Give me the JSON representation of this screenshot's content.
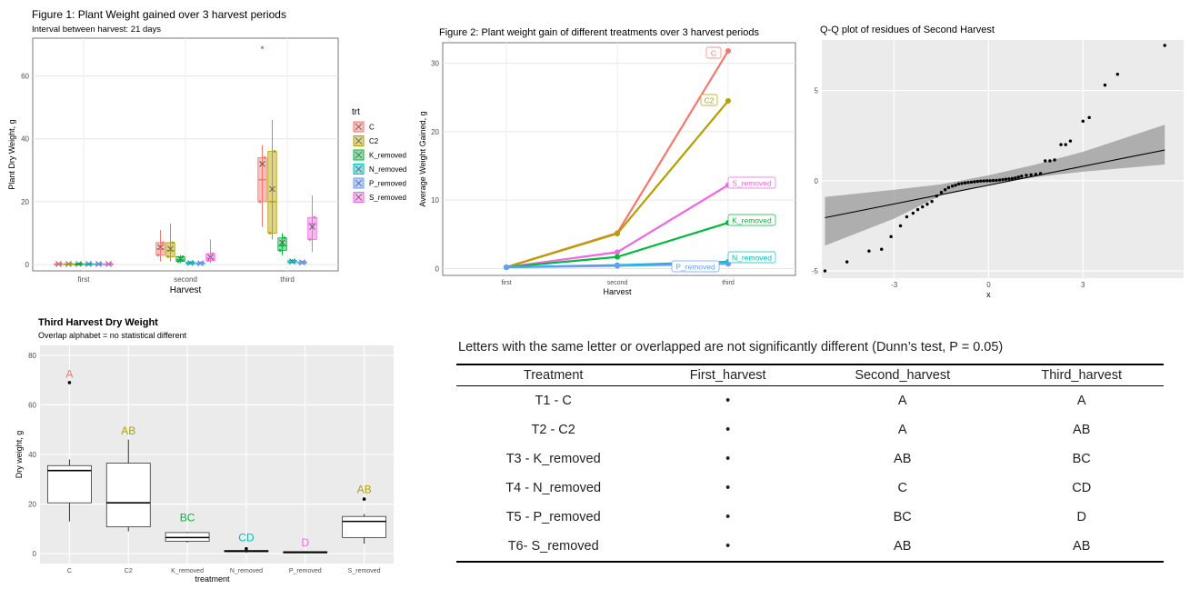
{
  "fig1": {
    "title": "Figure 1: Plant Weight gained over 3 harvest periods",
    "subtitle": "Interval between harvest: 21 days",
    "legend_title": "trt",
    "chart_data": {
      "type": "box",
      "xlabel": "Harvest",
      "ylabel": "Plant Dry Weight, g",
      "categories": [
        "first",
        "second",
        "third"
      ],
      "ylim": [
        -2,
        72
      ],
      "yticks": [
        0,
        20,
        40,
        60
      ],
      "grid": true,
      "legend": "right",
      "series": [
        {
          "name": "C",
          "color": "#F8766D",
          "boxes": [
            [
              0,
              0.1,
              0.2,
              0.3,
              0.5
            ],
            [
              1,
              3,
              5,
              7,
              11
            ],
            [
              12,
              20,
              27,
              34,
              38
            ]
          ],
          "means": [
            0.2,
            5.5,
            32
          ],
          "outliers": [
            [],
            [],
            [
              69
            ]
          ]
        },
        {
          "name": "C2",
          "color": "#B79F00",
          "boxes": [
            [
              0,
              0.1,
              0.2,
              0.3,
              0.5
            ],
            [
              1,
              2.5,
              4.5,
              7,
              13
            ],
            [
              8,
              10,
              20,
              36,
              46
            ]
          ],
          "means": [
            0.2,
            5,
            24
          ],
          "outliers": [
            [],
            [],
            []
          ]
        },
        {
          "name": "K_removed",
          "color": "#00BA38",
          "boxes": [
            [
              0,
              0.1,
              0.2,
              0.3,
              0.5
            ],
            [
              0.5,
              1,
              1.5,
              2.5,
              3
            ],
            [
              3,
              4.5,
              6,
              8.5,
              10
            ]
          ],
          "means": [
            0.2,
            1.8,
            7
          ],
          "outliers": [
            [],
            [],
            []
          ]
        },
        {
          "name": "N_removed",
          "color": "#00BFC4",
          "boxes": [
            [
              0,
              0.1,
              0.2,
              0.3,
              0.5
            ],
            [
              0,
              0.2,
              0.5,
              0.8,
              1.2
            ],
            [
              0.3,
              0.6,
              0.9,
              1.3,
              1.8
            ]
          ],
          "means": [
            0.2,
            0.5,
            1
          ],
          "outliers": [
            [],
            [],
            []
          ]
        },
        {
          "name": "P_removed",
          "color": "#619CFF",
          "boxes": [
            [
              0,
              0.1,
              0.2,
              0.3,
              0.5
            ],
            [
              0,
              0.2,
              0.4,
              0.6,
              1
            ],
            [
              0.2,
              0.4,
              0.6,
              0.9,
              1.2
            ]
          ],
          "means": [
            0.2,
            0.4,
            0.7
          ],
          "outliers": [
            [],
            [],
            []
          ]
        },
        {
          "name": "S_removed",
          "color": "#F564E3",
          "boxes": [
            [
              0,
              0.1,
              0.2,
              0.3,
              0.5
            ],
            [
              0.5,
              1.2,
              2,
              3.5,
              8
            ],
            [
              4,
              8,
              13,
              15,
              22
            ]
          ],
          "means": [
            0.2,
            2.3,
            12
          ],
          "outliers": [
            [],
            [],
            []
          ]
        }
      ]
    }
  },
  "fig2": {
    "title": "Figure 2: Plant weight gain of different treatments over 3 harvest periods",
    "chart_data": {
      "type": "line",
      "xlabel": "Harvest",
      "ylabel": "Average Weight Gained, g",
      "categories": [
        "first",
        "second",
        "third"
      ],
      "ylim": [
        -1,
        33
      ],
      "yticks": [
        0,
        10,
        20,
        30
      ],
      "grid": true,
      "series": [
        {
          "name": "C",
          "color": "#F8766D",
          "values": [
            0.2,
            5.2,
            31.8
          ]
        },
        {
          "name": "C2",
          "color": "#B79F00",
          "values": [
            0.2,
            5.1,
            24.5
          ]
        },
        {
          "name": "S_removed",
          "color": "#F564E3",
          "values": [
            0.2,
            2.4,
            12.2
          ]
        },
        {
          "name": "K_removed",
          "color": "#00BA38",
          "values": [
            0.2,
            1.7,
            6.7
          ]
        },
        {
          "name": "N_removed",
          "color": "#00BFC4",
          "values": [
            0.2,
            0.5,
            1.0
          ]
        },
        {
          "name": "P_removed",
          "color": "#619CFF",
          "values": [
            0.2,
            0.4,
            0.7
          ]
        }
      ]
    }
  },
  "fig3": {
    "title": "Q-Q plot of residues of Second Harvest",
    "chart_data": {
      "type": "scatter",
      "xlabel": "x",
      "ylabel": "",
      "xlim": [
        -5.3,
        6.2
      ],
      "ylim": [
        -5.4,
        7.8
      ],
      "xticks": [
        -3,
        0,
        3
      ],
      "yticks": [
        -5,
        0,
        5
      ],
      "grid": true,
      "points": [
        [
          -5.2,
          -5
        ],
        [
          -4.5,
          -4.5
        ],
        [
          -3.8,
          -3.9
        ],
        [
          -3.4,
          -3.8
        ],
        [
          -3.1,
          -3.1
        ],
        [
          -2.8,
          -2.5
        ],
        [
          -2.6,
          -2
        ],
        [
          -2.4,
          -1.8
        ],
        [
          -2.25,
          -1.6
        ],
        [
          -2.1,
          -1.45
        ],
        [
          -1.95,
          -1.3
        ],
        [
          -1.8,
          -1.15
        ],
        [
          -1.65,
          -0.85
        ],
        [
          -1.5,
          -0.65
        ],
        [
          -1.38,
          -0.5
        ],
        [
          -1.27,
          -0.38
        ],
        [
          -1.15,
          -0.3
        ],
        [
          -1.05,
          -0.25
        ],
        [
          -0.95,
          -0.18
        ],
        [
          -0.85,
          -0.15
        ],
        [
          -0.75,
          -0.12
        ],
        [
          -0.65,
          -0.1
        ],
        [
          -0.55,
          -0.08
        ],
        [
          -0.45,
          -0.06
        ],
        [
          -0.35,
          -0.04
        ],
        [
          -0.25,
          -0.02
        ],
        [
          -0.15,
          -0.01
        ],
        [
          -0.05,
          0
        ],
        [
          0.05,
          0
        ],
        [
          0.15,
          0.01
        ],
        [
          0.25,
          0.02
        ],
        [
          0.35,
          0.04
        ],
        [
          0.45,
          0.06
        ],
        [
          0.55,
          0.08
        ],
        [
          0.65,
          0.1
        ],
        [
          0.75,
          0.12
        ],
        [
          0.85,
          0.15
        ],
        [
          0.95,
          0.2
        ],
        [
          1.05,
          0.25
        ],
        [
          1.2,
          0.3
        ],
        [
          1.35,
          0.33
        ],
        [
          1.5,
          0.35
        ],
        [
          1.65,
          0.4
        ],
        [
          1.8,
          1.1
        ],
        [
          1.95,
          1.1
        ],
        [
          2.1,
          1.15
        ],
        [
          2.3,
          2.0
        ],
        [
          2.45,
          2.0
        ],
        [
          2.6,
          2.2
        ],
        [
          3.0,
          3.3
        ],
        [
          3.2,
          3.5
        ],
        [
          3.7,
          5.3
        ],
        [
          4.1,
          5.9
        ],
        [
          5.6,
          7.5
        ]
      ],
      "fit_line": [
        [
          -5.2,
          -2.05
        ],
        [
          5.6,
          1.7
        ]
      ],
      "band": [
        [
          -5.2,
          -3.6,
          -0.9
        ],
        [
          -3,
          -2.1,
          -0.5
        ],
        [
          -1.5,
          -0.8,
          -0.2
        ],
        [
          0,
          -0.2,
          0.3
        ],
        [
          1.5,
          0.2,
          0.9
        ],
        [
          3,
          0.5,
          1.6
        ],
        [
          5.6,
          0.9,
          3.1
        ]
      ]
    }
  },
  "fig4": {
    "title": "Third Harvest Dry Weight",
    "subtitle": "Overlap alphabet = no statistical different",
    "chart_data": {
      "type": "box",
      "xlabel": "treatment",
      "ylabel": "Dry weight, g",
      "categories": [
        "C",
        "C2",
        "K_removed",
        "N_removed",
        "P_removed",
        "S_removed"
      ],
      "ylim": [
        -4,
        84
      ],
      "yticks": [
        0,
        20,
        40,
        60,
        80
      ],
      "grid": true,
      "boxes": [
        [
          13,
          20.5,
          33.5,
          35.5,
          38
        ],
        [
          9,
          10.8,
          20.5,
          36.5,
          46
        ],
        [
          4.5,
          5,
          6.5,
          8.5,
          8.8
        ],
        [
          0.3,
          0.8,
          1,
          1.3,
          1.5
        ],
        [
          0.2,
          0.4,
          0.6,
          0.8,
          1
        ],
        [
          4,
          6.5,
          13,
          15,
          16
        ]
      ],
      "outliers": [
        [
          69
        ],
        [],
        [],
        [
          2
        ],
        [],
        [
          22
        ]
      ],
      "letters": [
        "A",
        "AB",
        "BC",
        "CD",
        "D",
        "AB"
      ],
      "letter_y": [
        71,
        48,
        13,
        5,
        3,
        24.5
      ],
      "letter_colors": [
        "#F8766D",
        "#B79F00",
        "#00BA38",
        "#00BFC4",
        "#F564E3",
        "#B79F00"
      ]
    }
  },
  "table": {
    "caption": "Letters with the same letter or overlapped are not significantly different (Dunn’s test, P = 0.05)",
    "headers": [
      "Treatment",
      "First_harvest",
      "Second_harvest",
      "Third_harvest"
    ],
    "rows": [
      [
        "T1 - C",
        "•",
        "A",
        "A"
      ],
      [
        "T2 - C2",
        "•",
        "A",
        "AB"
      ],
      [
        "T3 - K_removed",
        "•",
        "AB",
        "BC"
      ],
      [
        "T4 - N_removed",
        "•",
        "C",
        "CD"
      ],
      [
        "T5 - P_removed",
        "•",
        "BC",
        "D"
      ],
      [
        "T6- S_removed",
        "•",
        "AB",
        "AB"
      ]
    ]
  }
}
